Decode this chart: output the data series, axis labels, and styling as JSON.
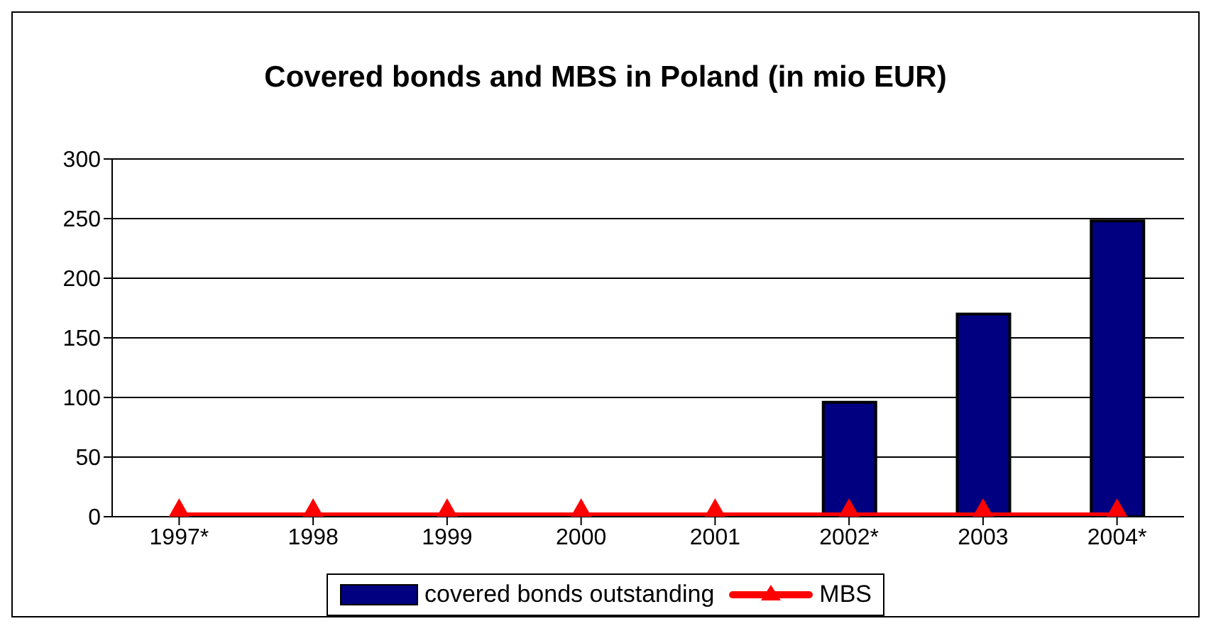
{
  "chart_data": {
    "type": "bar",
    "title": "Covered bonds and MBS in Poland (in mio EUR)",
    "categories": [
      "1997*",
      "1998",
      "1999",
      "2000",
      "2001",
      "2002*",
      "2003",
      "2004*"
    ],
    "series": [
      {
        "name": "covered bonds outstanding",
        "color": "#000080",
        "values": [
          0,
          0,
          0,
          0,
          0,
          96,
          170,
          248
        ]
      },
      {
        "name": "MBS",
        "type": "line",
        "color": "#ff0000",
        "values": [
          0,
          0,
          0,
          0,
          0,
          0,
          0,
          0
        ]
      }
    ],
    "ylim": [
      0,
      300
    ],
    "yticks": [
      0,
      50,
      100,
      150,
      200,
      250,
      300
    ],
    "grid": "y",
    "legend": "bottom",
    "marker": "triangle"
  }
}
